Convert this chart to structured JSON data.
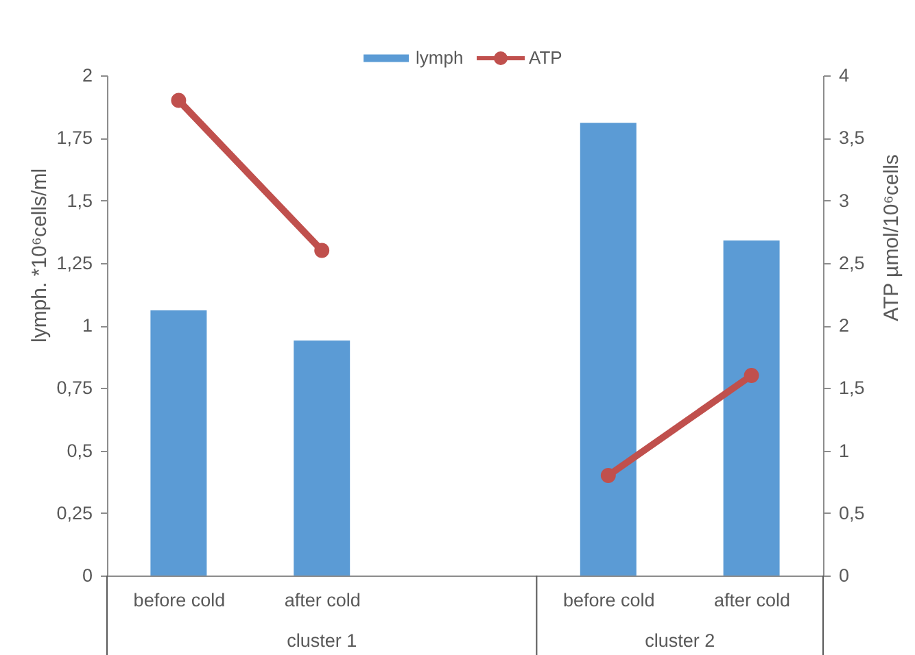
{
  "chart_data": {
    "type": "bar",
    "categories": [
      "before cold",
      "after cold",
      null,
      "before cold",
      "after cold"
    ],
    "ylabel": "lymph. *10⁶cells/ml",
    "y2label": "ATP µmol/10⁶cells",
    "series": [
      {
        "name": "lymph",
        "color": "#5b9bd5",
        "values": [
          1.06,
          0.94,
          null,
          1.81,
          1.34
        ]
      },
      {
        "name": "ATP",
        "type": "line",
        "axis": "y2",
        "color": "#c0504d",
        "marker": "circle",
        "values": [
          3.8,
          2.6,
          null,
          0.8,
          1.6
        ]
      }
    ],
    "ylim": [
      0,
      2
    ],
    "yticks": [
      0,
      {
        "value": 0.25,
        "label": "0,25"
      },
      {
        "value": 0.5,
        "label": "0,5"
      },
      {
        "value": 0.75,
        "label": "0,75"
      },
      1,
      {
        "value": 1.25,
        "label": "1,25"
      },
      {
        "value": 1.5,
        "label": "1,5"
      },
      {
        "value": 1.75,
        "label": "1,75"
      },
      2
    ],
    "y2lim": [
      0,
      4
    ],
    "y2ticks": [
      0,
      {
        "value": 0.5,
        "label": "0,5"
      },
      1,
      {
        "value": 1.5,
        "label": "1,5"
      },
      2,
      {
        "value": 2.5,
        "label": "2,5"
      },
      3,
      {
        "value": 3.5,
        "label": "3,5"
      },
      4
    ],
    "legend": "top",
    "annotations": [
      "cluster 1",
      "cluster 2"
    ]
  }
}
